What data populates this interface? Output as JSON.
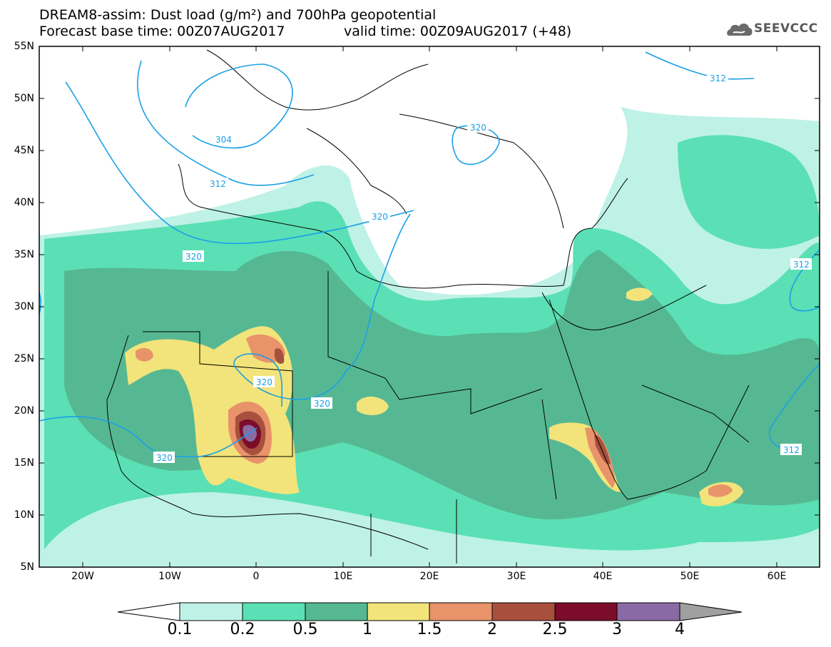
{
  "header": {
    "title_line1": "DREAM8-assim: Dust load (g/m²) and 700hPa geopotential",
    "title_line2": "Forecast base time: 00Z07AUG2017",
    "valid_time": "valid time: 00Z09AUG2017 (+48)",
    "logo_text": "SEEVCCC"
  },
  "map": {
    "lat_labels": [
      "55N",
      "50N",
      "45N",
      "40N",
      "35N",
      "30N",
      "25N",
      "20N",
      "15N",
      "10N",
      "5N"
    ],
    "lon_labels": [
      "20W",
      "10W",
      "0",
      "10E",
      "20E",
      "30E",
      "40E",
      "50E",
      "60E"
    ],
    "contour_labels": [
      "304",
      "312",
      "320",
      "320",
      "320",
      "320",
      "320",
      "320",
      "312",
      "312",
      "312"
    ]
  },
  "colorbar": {
    "labels": [
      "0.1",
      "0.2",
      "0.5",
      "1",
      "1.5",
      "2",
      "2.5",
      "3",
      "4"
    ],
    "colors": [
      "#ffffff",
      "#bff2e6",
      "#5ae0b4",
      "#56b893",
      "#f2e47a",
      "#e8936a",
      "#a8503e",
      "#7b0d2a",
      "#8a6aa4",
      "#a0a0a0"
    ]
  }
}
